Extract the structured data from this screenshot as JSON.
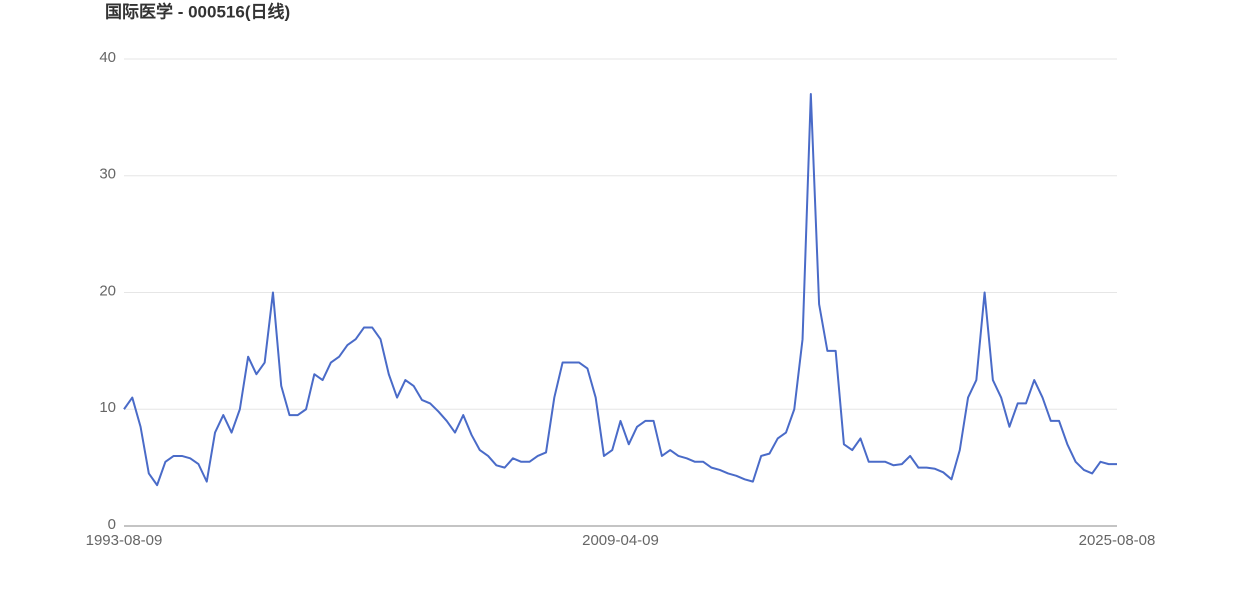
{
  "chart_data": {
    "type": "line",
    "title": "国际医学 - 000516(日线)",
    "categories": [
      "1993-08-09",
      null,
      null,
      null,
      null,
      null,
      null,
      null,
      null,
      null,
      null,
      null,
      null,
      null,
      null,
      null,
      null,
      null,
      null,
      null,
      null,
      null,
      null,
      null,
      null,
      null,
      null,
      null,
      null,
      null,
      null,
      null,
      null,
      null,
      null,
      null,
      null,
      null,
      null,
      null,
      null,
      null,
      null,
      null,
      null,
      null,
      null,
      null,
      null,
      null,
      null,
      null,
      null,
      null,
      null,
      null,
      null,
      null,
      null,
      null,
      "2009-04-09",
      null,
      null,
      null,
      null,
      null,
      null,
      null,
      null,
      null,
      null,
      null,
      null,
      null,
      null,
      null,
      null,
      null,
      null,
      null,
      null,
      null,
      null,
      null,
      null,
      null,
      null,
      null,
      null,
      null,
      null,
      null,
      null,
      null,
      null,
      null,
      null,
      null,
      null,
      null,
      null,
      null,
      null,
      null,
      null,
      null,
      null,
      null,
      null,
      null,
      null,
      null,
      null,
      null,
      null,
      null,
      null,
      null,
      null,
      null,
      "2025-08-08"
    ],
    "series": [
      {
        "color": "#4a6bc8",
        "values": [
          10,
          11,
          8.5,
          4.5,
          3.5,
          5.5,
          6,
          6,
          5.8,
          5.3,
          3.8,
          8,
          9.5,
          8,
          10,
          14.5,
          13,
          14,
          20,
          12,
          9.5,
          9.5,
          10,
          13,
          12.5,
          14,
          14.5,
          15.5,
          16,
          17,
          17,
          16,
          13,
          11,
          12.5,
          12,
          10.8,
          10.5,
          9.8,
          9,
          8,
          9.5,
          7.8,
          6.5,
          6,
          5.2,
          5,
          5.8,
          5.5,
          5.5,
          6,
          6.3,
          11,
          14,
          14,
          14,
          13.5,
          11,
          6,
          6.5,
          9,
          7,
          8.5,
          9,
          9,
          6,
          6.5,
          6,
          5.8,
          5.5,
          5.5,
          5,
          4.8,
          4.5,
          4.3,
          4,
          3.8,
          6,
          6.2,
          7.5,
          8,
          10,
          16,
          37,
          19,
          15,
          15,
          7,
          6.5,
          7.5,
          5.5,
          5.5,
          5.5,
          5.2,
          5.3,
          6,
          5,
          5,
          4.9,
          4.6,
          4,
          6.5,
          11,
          12.5,
          20,
          12.5,
          11,
          8.5,
          10.5,
          10.5,
          12.5,
          11,
          9,
          9,
          7,
          5.5,
          4.8,
          4.5,
          5.5,
          5.3,
          5.3
        ]
      }
    ],
    "ylim": [
      0,
      40
    ],
    "yticks": [
      0,
      10,
      20,
      30,
      40
    ],
    "grid": true
  }
}
